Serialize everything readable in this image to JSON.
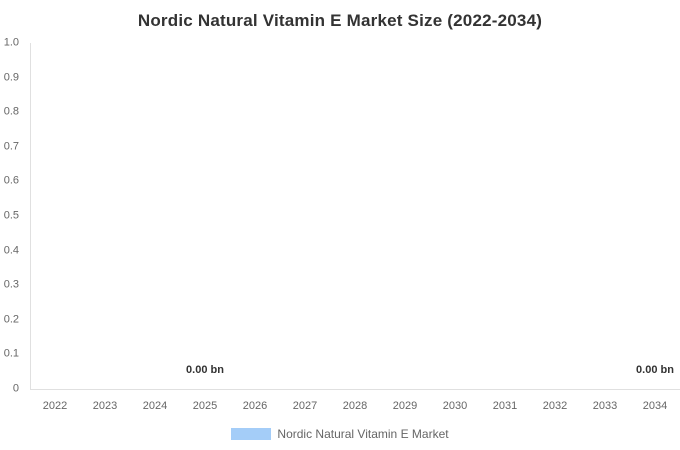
{
  "chart_data": {
    "type": "bar",
    "title": "Nordic Natural Vitamin E Market Size (2022-2034)",
    "categories": [
      "2022",
      "2023",
      "2024",
      "2025",
      "2026",
      "2027",
      "2028",
      "2029",
      "2030",
      "2031",
      "2032",
      "2033",
      "2034"
    ],
    "series": [
      {
        "name": "Nordic Natural Vitamin E Market",
        "values": [
          0,
          0,
          0,
          0,
          0,
          0,
          0,
          0,
          0,
          0,
          0,
          0,
          0
        ],
        "color": "#A4CDF8"
      }
    ],
    "data_labels": [
      {
        "category": "2025",
        "text": "0.00 bn"
      },
      {
        "category": "2034",
        "text": "0.00 bn"
      }
    ],
    "xlabel": "",
    "ylabel": "",
    "ylim": [
      0,
      1
    ],
    "yticks": [
      "1.0",
      "0.9",
      "0.8",
      "0.7",
      "0.6",
      "0.5",
      "0.4",
      "0.3",
      "0.2",
      "0.1",
      "0"
    ],
    "grid": false,
    "legend_position": "bottom-center"
  },
  "colors": {
    "title": "#333333",
    "axis_label": "#666666",
    "data_label": "#333333",
    "axis_line": "#E0E0E0",
    "series_fill": "#A4CDF8",
    "background": "#FFFFFF"
  }
}
